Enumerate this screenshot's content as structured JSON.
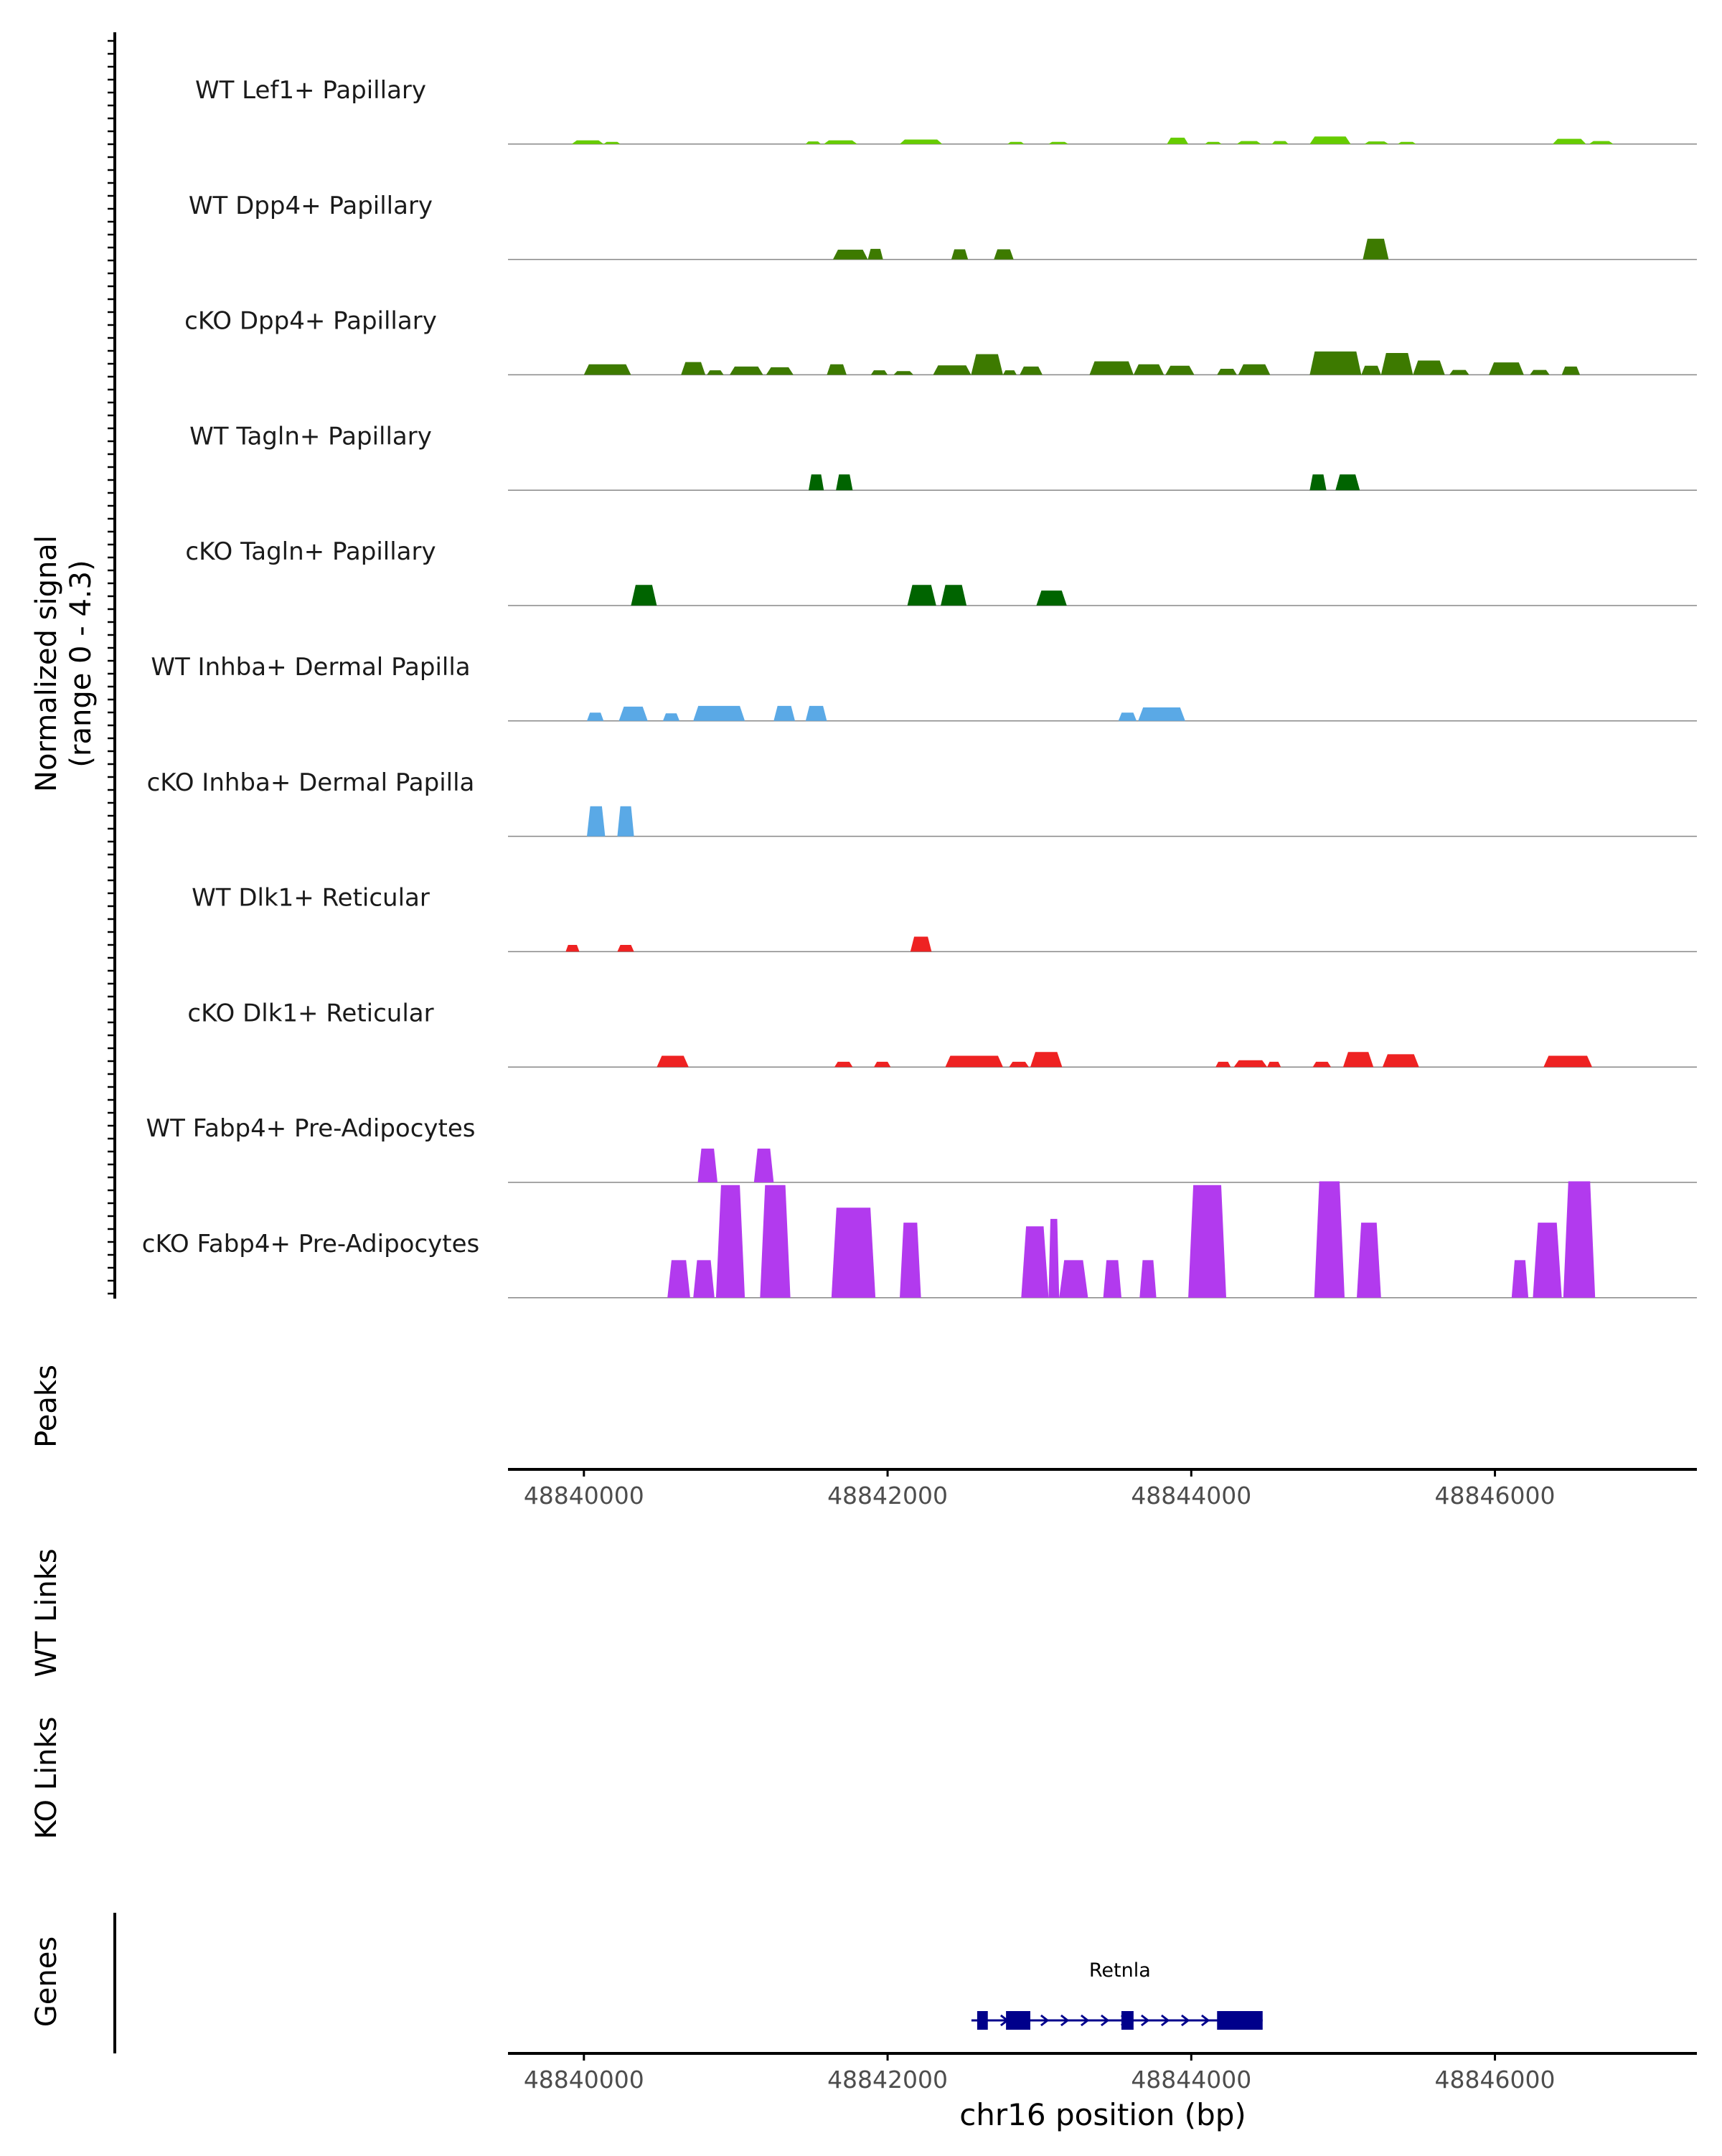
{
  "chart_data": {
    "type": "area",
    "title": "",
    "chromosome": "chr16",
    "xlabel": "chr16 position (bp)",
    "ylabel": [
      "Normalized signal",
      "(range 0 - 4.3)"
    ],
    "signal_range": [
      0,
      4.3
    ],
    "xlim": [
      48839500,
      48847330
    ],
    "x_ticks": [
      48840000,
      48842000,
      48844000,
      48846000
    ],
    "x_tick_labels": [
      "48840000",
      "48842000",
      "48844000",
      "48846000"
    ],
    "panel_labels": {
      "peaks": "Peaks",
      "wt_links": "WT Links",
      "ko_links": "KO Links",
      "genes": "Genes"
    },
    "colors": {
      "lef1": "#66cc00",
      "dpp4": "#3d7a00",
      "tagln": "#006400",
      "inhba": "#5aa9e6",
      "dlk1": "#ee2222",
      "fabp4": "#b23aee",
      "gene": "#00008b",
      "baseline": "#888888",
      "axis": "#000000"
    },
    "series": [
      {
        "name": "WT Lef1+ Papillary",
        "color_key": "lef1",
        "peaks": [
          [
            48839920,
            48840130,
            0.1
          ],
          [
            48840130,
            48840240,
            0.06
          ],
          [
            48841460,
            48841560,
            0.07
          ],
          [
            48841580,
            48841800,
            0.1
          ],
          [
            48842080,
            48842360,
            0.12
          ],
          [
            48842790,
            48842900,
            0.06
          ],
          [
            48843060,
            48843190,
            0.06
          ],
          [
            48843840,
            48843980,
            0.17
          ],
          [
            48844090,
            48844200,
            0.06
          ],
          [
            48844300,
            48844460,
            0.08
          ],
          [
            48844530,
            48844640,
            0.08
          ],
          [
            48844780,
            48845050,
            0.2
          ],
          [
            48845140,
            48845300,
            0.07
          ],
          [
            48845360,
            48845480,
            0.06
          ],
          [
            48846380,
            48846600,
            0.14
          ],
          [
            48846620,
            48846780,
            0.08
          ]
        ]
      },
      {
        "name": "WT Dpp4+ Papillary",
        "color_key": "dpp4",
        "peaks": [
          [
            48841640,
            48841870,
            0.26
          ],
          [
            48841870,
            48841970,
            0.28
          ],
          [
            48842420,
            48842530,
            0.27
          ],
          [
            48842700,
            48842830,
            0.27
          ],
          [
            48845130,
            48845300,
            0.55
          ]
        ]
      },
      {
        "name": "cKO Dpp4+ Papillary",
        "color_key": "dpp4",
        "peaks": [
          [
            48840000,
            48840310,
            0.28
          ],
          [
            48840640,
            48840800,
            0.34
          ],
          [
            48840810,
            48840920,
            0.12
          ],
          [
            48840960,
            48841180,
            0.22
          ],
          [
            48841200,
            48841380,
            0.2
          ],
          [
            48841600,
            48841730,
            0.28
          ],
          [
            48841890,
            48842000,
            0.12
          ],
          [
            48842040,
            48842170,
            0.1
          ],
          [
            48842300,
            48842550,
            0.25
          ],
          [
            48842550,
            48842760,
            0.55
          ],
          [
            48842760,
            48842850,
            0.12
          ],
          [
            48842870,
            48843020,
            0.22
          ],
          [
            48843330,
            48843620,
            0.36
          ],
          [
            48843620,
            48843820,
            0.28
          ],
          [
            48843830,
            48844020,
            0.24
          ],
          [
            48844170,
            48844300,
            0.16
          ],
          [
            48844310,
            48844520,
            0.28
          ],
          [
            48844780,
            48845120,
            0.62
          ],
          [
            48845120,
            48845250,
            0.24
          ],
          [
            48845250,
            48845460,
            0.58
          ],
          [
            48845460,
            48845670,
            0.38
          ],
          [
            48845700,
            48845830,
            0.13
          ],
          [
            48845960,
            48846190,
            0.33
          ],
          [
            48846230,
            48846360,
            0.13
          ],
          [
            48846440,
            48846560,
            0.22
          ]
        ]
      },
      {
        "name": "WT Tagln+ Papillary",
        "color_key": "tagln",
        "peaks": [
          [
            48841480,
            48841580,
            0.42
          ],
          [
            48841660,
            48841770,
            0.42
          ],
          [
            48844780,
            48844890,
            0.42
          ],
          [
            48844950,
            48845110,
            0.42
          ]
        ]
      },
      {
        "name": "cKO Tagln+ Papillary",
        "color_key": "tagln",
        "peaks": [
          [
            48840310,
            48840480,
            0.55
          ],
          [
            48842130,
            48842320,
            0.55
          ],
          [
            48842350,
            48842520,
            0.55
          ],
          [
            48842980,
            48843180,
            0.4
          ]
        ]
      },
      {
        "name": "WT Inhba+ Dermal Papilla",
        "color_key": "inhba",
        "peaks": [
          [
            48840020,
            48840130,
            0.22
          ],
          [
            48840230,
            48840420,
            0.38
          ],
          [
            48840520,
            48840630,
            0.2
          ],
          [
            48840720,
            48841060,
            0.4
          ],
          [
            48841250,
            48841390,
            0.4
          ],
          [
            48841460,
            48841600,
            0.4
          ],
          [
            48843520,
            48843640,
            0.22
          ],
          [
            48843650,
            48843960,
            0.36
          ]
        ]
      },
      {
        "name": "cKO Inhba+ Dermal Papilla",
        "color_key": "inhba",
        "peaks": [
          [
            48840020,
            48840140,
            0.8
          ],
          [
            48840220,
            48840330,
            0.8
          ]
        ]
      },
      {
        "name": "WT Dlk1+ Reticular",
        "color_key": "dlk1",
        "peaks": [
          [
            48839880,
            48839970,
            0.18
          ],
          [
            48840220,
            48840330,
            0.18
          ],
          [
            48842150,
            48842290,
            0.4
          ]
        ]
      },
      {
        "name": "cKO Dlk1+ Reticular",
        "color_key": "dlk1",
        "peaks": [
          [
            48840480,
            48840690,
            0.3
          ],
          [
            48841650,
            48841770,
            0.14
          ],
          [
            48841910,
            48842020,
            0.14
          ],
          [
            48842380,
            48842760,
            0.3
          ],
          [
            48842800,
            48842930,
            0.14
          ],
          [
            48842940,
            48843150,
            0.4
          ],
          [
            48844160,
            48844260,
            0.14
          ],
          [
            48844280,
            48844500,
            0.18
          ],
          [
            48844500,
            48844590,
            0.14
          ],
          [
            48844800,
            48844920,
            0.14
          ],
          [
            48845000,
            48845200,
            0.4
          ],
          [
            48845260,
            48845500,
            0.34
          ],
          [
            48846320,
            48846640,
            0.3
          ]
        ]
      },
      {
        "name": "WT Fabp4+ Pre-Adipocytes",
        "color_key": "fabp4",
        "peaks": [
          [
            48840750,
            48840880,
            0.9
          ],
          [
            48841120,
            48841250,
            0.9
          ]
        ]
      },
      {
        "name": "cKO Fabp4+ Pre-Adipocytes",
        "color_key": "fabp4",
        "peaks": [
          [
            48840550,
            48840700,
            1.0
          ],
          [
            48840720,
            48840860,
            1.0
          ],
          [
            48840870,
            48841060,
            3.0
          ],
          [
            48841160,
            48841360,
            3.0
          ],
          [
            48841630,
            48841920,
            2.4
          ],
          [
            48842080,
            48842220,
            2.0
          ],
          [
            48842880,
            48843060,
            1.9
          ],
          [
            48843060,
            48843130,
            2.1
          ],
          [
            48843130,
            48843320,
            1.0
          ],
          [
            48843420,
            48843540,
            1.0
          ],
          [
            48843660,
            48843770,
            1.0
          ],
          [
            48843980,
            48844230,
            3.0
          ],
          [
            48844810,
            48845010,
            3.1
          ],
          [
            48845090,
            48845250,
            2.0
          ],
          [
            48846110,
            48846220,
            1.0
          ],
          [
            48846250,
            48846440,
            2.0
          ],
          [
            48846450,
            48846660,
            3.1
          ]
        ]
      }
    ],
    "genes": [
      {
        "name": "Retnla",
        "start": 48842590,
        "end": 48844470,
        "strand": "+",
        "exons": [
          [
            48842590,
            48842660
          ],
          [
            48842780,
            48842940
          ],
          [
            48843540,
            48843620
          ],
          [
            48844170,
            48844470
          ]
        ]
      }
    ]
  }
}
